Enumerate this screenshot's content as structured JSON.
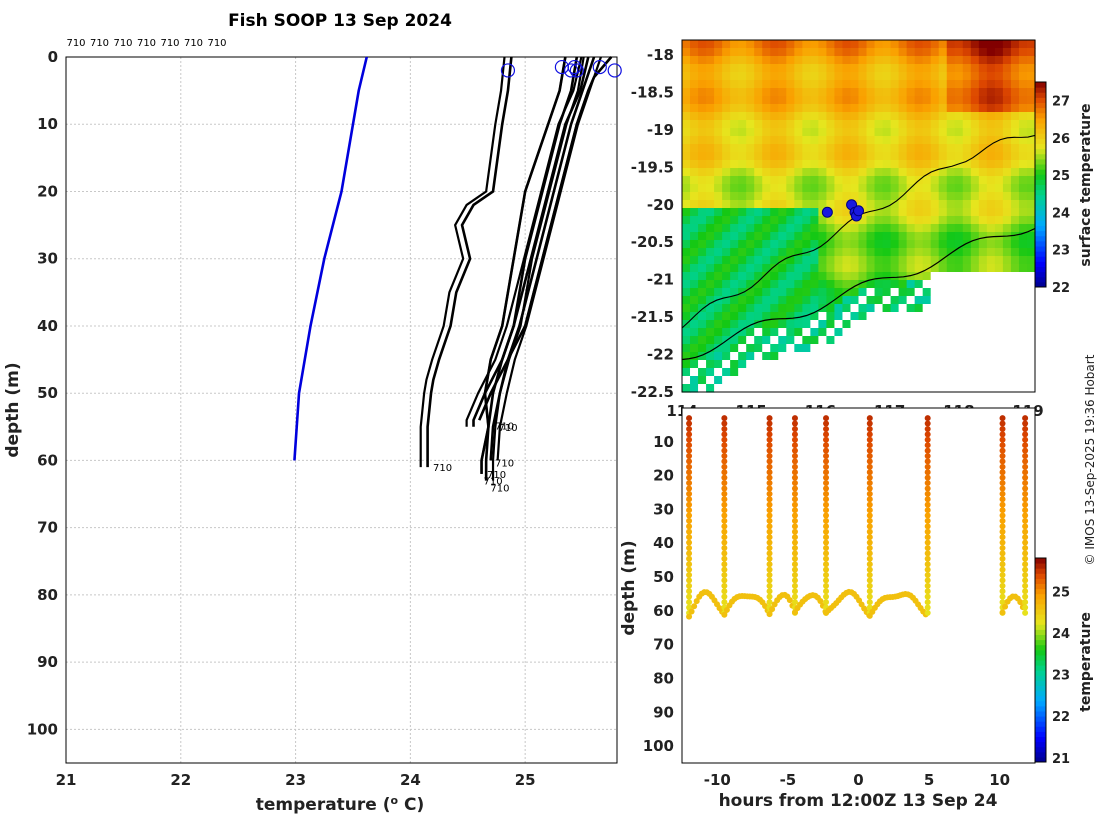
{
  "chart_data": [
    {
      "type": "line",
      "title": "Fish SOOP 13 Sep 2024",
      "xlabel": "temperature (",
      "xlabel_sup": "o",
      "xlabel_end": " C)",
      "ylabel": "depth (m)",
      "xlim": [
        21,
        25.8
      ],
      "ylim": [
        105,
        0
      ],
      "xticks": [
        "21",
        "22",
        "23",
        "24",
        "25"
      ],
      "yticks": [
        "0",
        "10",
        "20",
        "30",
        "40",
        "50",
        "60",
        "70",
        "80",
        "90",
        "100"
      ],
      "grid": true,
      "top_annotations": [
        "710",
        "710",
        "710",
        "710",
        "710",
        "710",
        "710"
      ],
      "reference_profile": {
        "color": "#0000dd",
        "depth": [
          0,
          5,
          10,
          20,
          30,
          40,
          50,
          60
        ],
        "temp": [
          23.62,
          23.55,
          23.5,
          23.4,
          23.25,
          23.13,
          23.03,
          22.99
        ]
      },
      "profiles": [
        {
          "label": "710",
          "surface_temp": 24.85,
          "bottom_depth": 61,
          "bottom_temp": 24.15,
          "depth": [
            0,
            5,
            10,
            20,
            22,
            25,
            30,
            35,
            40,
            45,
            48,
            50,
            55,
            61
          ],
          "temp": [
            24.88,
            24.85,
            24.8,
            24.72,
            24.55,
            24.45,
            24.52,
            24.4,
            24.35,
            24.25,
            24.2,
            24.18,
            24.15,
            24.15
          ]
        },
        {
          "label": "710",
          "surface_temp": 25.3,
          "bottom_depth": 62,
          "bottom_temp": 24.62,
          "depth": [
            0,
            5,
            10,
            20,
            30,
            40,
            45,
            50,
            55,
            60,
            62
          ],
          "temp": [
            25.35,
            25.3,
            25.2,
            25.0,
            24.9,
            24.8,
            24.7,
            24.65,
            24.68,
            24.62,
            24.62
          ]
        },
        {
          "label": "710",
          "surface_temp": 25.4,
          "bottom_depth": 63,
          "bottom_temp": 24.66,
          "depth": [
            0,
            5,
            10,
            20,
            30,
            40,
            45,
            50,
            55,
            60,
            63
          ],
          "temp": [
            25.45,
            25.4,
            25.3,
            25.15,
            25.0,
            24.9,
            24.8,
            24.72,
            24.68,
            24.66,
            24.66
          ]
        },
        {
          "label": "710",
          "surface_temp": 25.5,
          "bottom_depth": 55,
          "bottom_temp": 24.55,
          "depth": [
            0,
            5,
            10,
            20,
            30,
            40,
            45,
            50,
            54,
            55
          ],
          "temp": [
            25.55,
            25.48,
            25.35,
            25.2,
            25.05,
            24.9,
            24.8,
            24.65,
            24.55,
            24.55
          ]
        },
        {
          "label": "710",
          "surface_temp": 25.7,
          "bottom_depth": 54,
          "bottom_temp": 24.6,
          "depth": [
            0,
            3,
            5,
            10,
            20,
            30,
            40,
            45,
            50,
            54
          ],
          "temp": [
            25.75,
            25.6,
            25.55,
            25.45,
            25.3,
            25.15,
            25.0,
            24.85,
            24.7,
            24.6
          ]
        },
        {
          "label": "710",
          "surface_temp": 25.6,
          "bottom_depth": 60,
          "bottom_temp": 24.7,
          "depth": [
            0,
            5,
            10,
            20,
            30,
            40,
            45,
            50,
            55,
            60
          ],
          "temp": [
            25.6,
            25.5,
            25.4,
            25.25,
            25.1,
            24.95,
            24.85,
            24.78,
            24.72,
            24.7
          ]
        }
      ],
      "bottom_labels": [
        "710",
        "710",
        "710",
        "710",
        "710",
        "710",
        "710"
      ],
      "surface_markers": [
        24.85,
        25.32,
        25.4,
        25.43,
        25.45,
        25.65,
        25.78
      ]
    },
    {
      "type": "heatmap",
      "xlim": [
        114,
        119.1
      ],
      "ylim": [
        -22.5,
        -17.8
      ],
      "xticks": [
        "114",
        "115",
        "116",
        "117",
        "118",
        "119"
      ],
      "yticks": [
        "-18",
        "-18.5",
        "-19",
        "-19.5",
        "-20",
        "-20.5",
        "-21",
        "-21.5",
        "-22",
        "-22.5"
      ],
      "colorbar_label": "surface temperature",
      "colorbar_ticks": [
        "22",
        "23",
        "24",
        "25",
        "26",
        "27"
      ],
      "colorbar_range": [
        22,
        27.5
      ],
      "observation_points": [
        [
          116.1,
          -20.1
        ],
        [
          116.45,
          -20.0
        ],
        [
          116.5,
          -20.1
        ],
        [
          116.52,
          -20.15
        ],
        [
          116.55,
          -20.08
        ]
      ]
    },
    {
      "type": "scatter",
      "xlabel": "hours from 12:00Z 13 Sep 24",
      "ylabel": "depth (m)",
      "xlim": [
        -12.5,
        12.5
      ],
      "ylim": [
        105,
        0
      ],
      "xticks": [
        "-10",
        "-5",
        "0",
        "5",
        "10"
      ],
      "yticks": [
        "10",
        "20",
        "30",
        "40",
        "50",
        "60",
        "70",
        "80",
        "90",
        "100"
      ],
      "colorbar_label": "temperature",
      "colorbar_ticks": [
        "21",
        "22",
        "23",
        "24",
        "25"
      ],
      "colorbar_range": [
        20.9,
        25.8
      ],
      "casts": [
        -12,
        -9.5,
        -6.3,
        -4.5,
        -2.3,
        0.8,
        4.9,
        10.2,
        11.8
      ]
    }
  ],
  "credit": "© IMOS 13-Sep-2025 19:36 Hobart"
}
